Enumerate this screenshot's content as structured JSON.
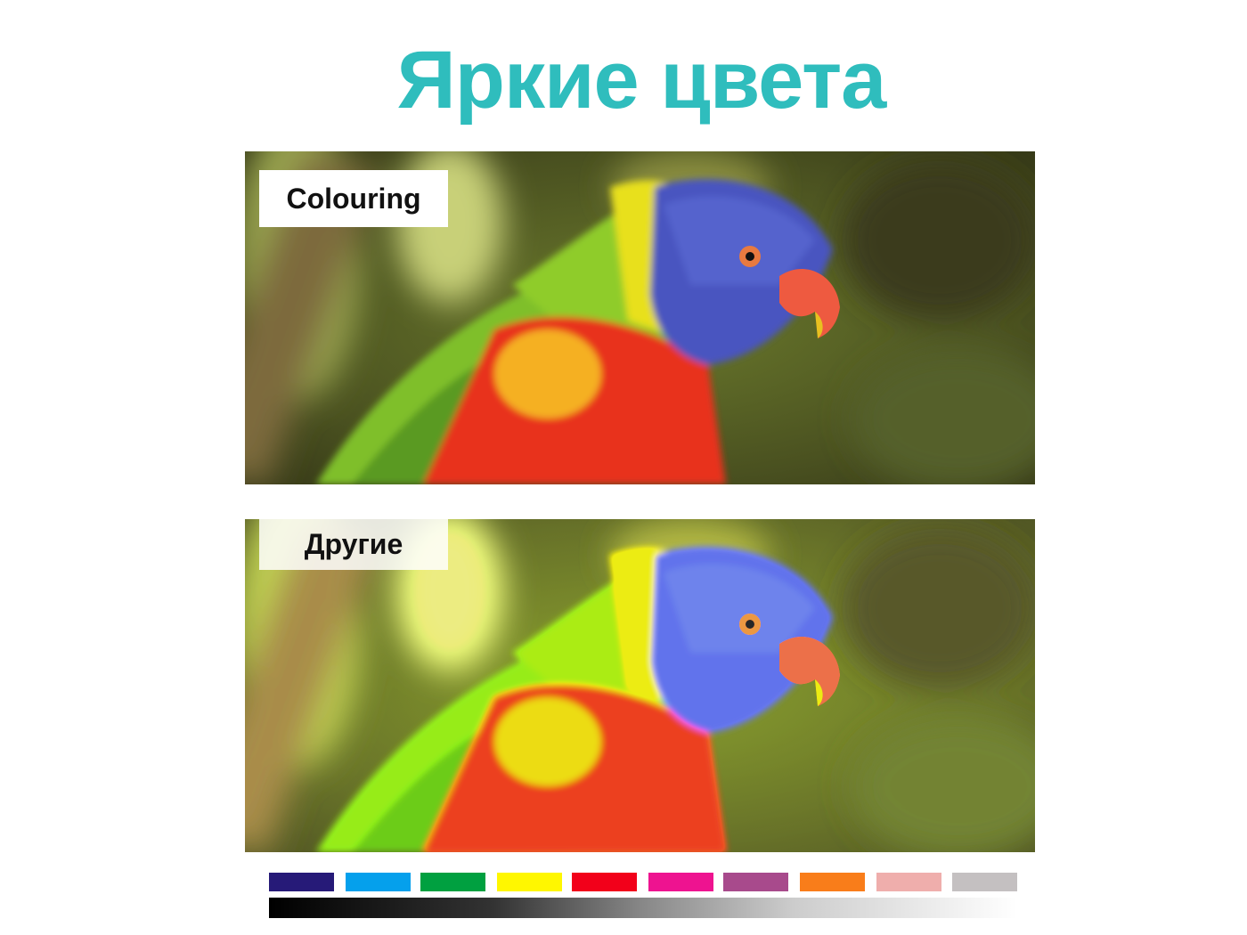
{
  "title": "Яркие цвета",
  "panels": [
    {
      "label": "Colouring"
    },
    {
      "label": "Другие"
    }
  ],
  "swatches": [
    "#261a78",
    "#05a0ec",
    "#00a040",
    "#fff700",
    "#f2001a",
    "#ee1390",
    "#a84a8c",
    "#f97d1a",
    "#efaeac",
    "#c4c0c1"
  ],
  "grayscale_bar": {
    "from": "#000000",
    "to": "#ffffff"
  }
}
